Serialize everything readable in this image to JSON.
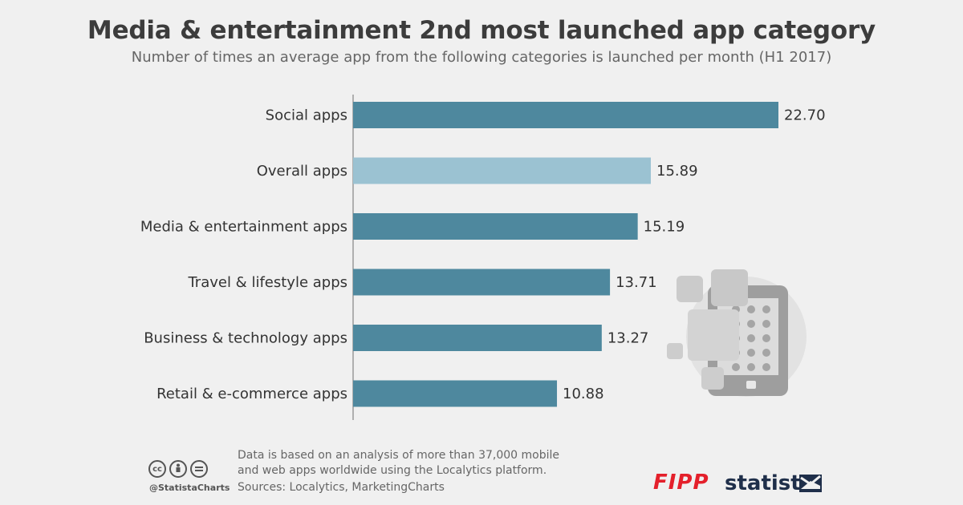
{
  "chart_data": {
    "type": "bar",
    "orientation": "horizontal",
    "title": "Media & entertainment 2nd most launched app category",
    "subtitle": "Number of times an average app from the following categories is launched per month (H1 2017)",
    "categories": [
      "Social apps",
      "Overall apps",
      "Media & entertainment apps",
      "Travel & lifestyle apps",
      "Business & technology apps",
      "Retail & e-commerce apps"
    ],
    "values": [
      22.7,
      15.89,
      15.19,
      13.71,
      13.27,
      10.88
    ],
    "value_labels": [
      "22.70",
      "15.89",
      "15.19",
      "13.71",
      "13.27",
      "10.88"
    ],
    "highlight_index": 1,
    "xlim": [
      0,
      22.7
    ],
    "grid": false,
    "colors": {
      "bar": "#4e889e",
      "highlight": "#9bc2d2"
    }
  },
  "footer": {
    "handle": "@StatistaCharts",
    "note": "Data is based on an analysis of more than 37,000 mobile and web apps worldwide using the Localytics platform.",
    "sources": "Sources: Localytics, MarketingCharts",
    "brand_fipp": "FIPP",
    "brand_statista": "statista"
  },
  "icons": {
    "license": [
      "cc-icon",
      "by-icon",
      "nd-icon"
    ],
    "illustration": "tablet-apps-icon"
  }
}
